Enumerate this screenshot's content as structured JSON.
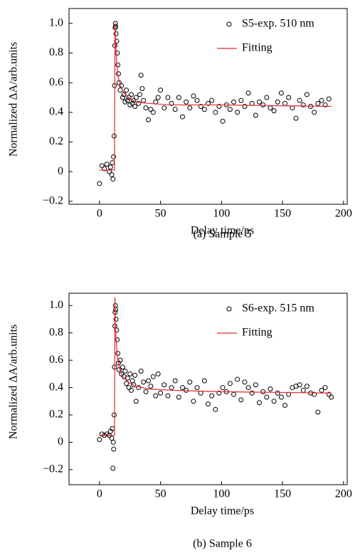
{
  "chart_data": [
    {
      "type": "scatter",
      "caption": "(a) Sample 5",
      "xlabel": "Delay time/ps",
      "ylabel": "Normalized ΔA/arb.units",
      "xlim": [
        -25,
        203
      ],
      "ylim": [
        -0.22,
        1.1
      ],
      "xticks": [
        0,
        50,
        100,
        150,
        200
      ],
      "yticks": [
        {
          "value": -0.2,
          "label": "−0.2"
        },
        0,
        0.2,
        0.4,
        0.6,
        0.8,
        {
          "value": 1,
          "label": "1.0"
        }
      ],
      "legend": "upper right",
      "series": [
        {
          "name": "S5-exp. 510 nm",
          "kind": "markers",
          "color": "#000000",
          "x": [
            0,
            2,
            4,
            6,
            8,
            9,
            10,
            10.5,
            11,
            11.5,
            12,
            12.3,
            12.6,
            12.8,
            13,
            13.2,
            13.5,
            14,
            14.5,
            15,
            15.5,
            16,
            17,
            18,
            19,
            20,
            21,
            22,
            23,
            24,
            25,
            26,
            27,
            28,
            29,
            30,
            32,
            33,
            34,
            35,
            36,
            38,
            40,
            42,
            44,
            46,
            48,
            50,
            53,
            56,
            59,
            62,
            65,
            68,
            71,
            74,
            77,
            80,
            83,
            86,
            89,
            92,
            95,
            98,
            101,
            104,
            107,
            110,
            113,
            116,
            119,
            122,
            125,
            128,
            131,
            134,
            137,
            140,
            143,
            146,
            149,
            152,
            155,
            158,
            161,
            164,
            167,
            170,
            173,
            176,
            179,
            182,
            185,
            188
          ],
          "values": [
            -0.08,
            0.04,
            0.02,
            0.05,
            0.0,
            0.03,
            -0.02,
            0.06,
            -0.05,
            0.1,
            0.24,
            0.58,
            0.85,
            0.97,
            1.0,
            0.98,
            0.93,
            0.88,
            0.8,
            0.72,
            0.66,
            0.6,
            0.55,
            0.58,
            0.5,
            0.52,
            0.47,
            0.55,
            0.48,
            0.5,
            0.45,
            0.52,
            0.46,
            0.48,
            0.44,
            0.5,
            0.46,
            0.52,
            0.65,
            0.56,
            0.48,
            0.43,
            0.35,
            0.42,
            0.4,
            0.47,
            0.5,
            0.55,
            0.43,
            0.5,
            0.46,
            0.42,
            0.5,
            0.37,
            0.47,
            0.43,
            0.51,
            0.48,
            0.44,
            0.42,
            0.46,
            0.48,
            0.4,
            0.44,
            0.34,
            0.45,
            0.42,
            0.47,
            0.4,
            0.48,
            0.44,
            0.53,
            0.46,
            0.38,
            0.47,
            0.45,
            0.5,
            0.43,
            0.41,
            0.47,
            0.53,
            0.46,
            0.5,
            0.43,
            0.36,
            0.48,
            0.45,
            0.52,
            0.44,
            0.4,
            0.46,
            0.48,
            0.45,
            0.49
          ]
        },
        {
          "name": "Fitting",
          "kind": "line",
          "color": "#e8282c",
          "x": [
            0,
            12.3,
            12.7,
            13,
            14,
            15,
            17,
            20,
            25,
            30,
            40,
            60,
            100,
            190
          ],
          "values": [
            0.01,
            0.01,
            1.0,
            0.9,
            0.75,
            0.65,
            0.58,
            0.53,
            0.49,
            0.47,
            0.46,
            0.45,
            0.45,
            0.44
          ]
        }
      ]
    },
    {
      "type": "scatter",
      "caption": "(b) Sample 6",
      "xlabel": "Delay time/ps",
      "ylabel": "Normalized ΔA/arb.units",
      "xlim": [
        -25,
        203
      ],
      "ylim": [
        -0.31,
        1.09
      ],
      "xticks": [
        0,
        50,
        100,
        150,
        200
      ],
      "yticks": [
        {
          "value": -0.2,
          "label": "−0.2"
        },
        0,
        0.2,
        0.4,
        0.6,
        0.8,
        {
          "value": 1,
          "label": "1.0"
        }
      ],
      "legend": "upper right",
      "series": [
        {
          "name": "S6-exp. 515 nm",
          "kind": "markers",
          "color": "#000000",
          "x": [
            0,
            2,
            4,
            6,
            8,
            9,
            10,
            10.5,
            11,
            11.3,
            11.6,
            12,
            12.3,
            12.6,
            12.8,
            13,
            13.2,
            13.5,
            14,
            14.5,
            15,
            15.5,
            16,
            17,
            18,
            19,
            20,
            21,
            22,
            23,
            24,
            25,
            26,
            27,
            28,
            29,
            30,
            32,
            34,
            36,
            38,
            40,
            42,
            44,
            46,
            48,
            50,
            53,
            56,
            59,
            62,
            65,
            68,
            71,
            74,
            77,
            80,
            83,
            86,
            89,
            92,
            95,
            98,
            101,
            104,
            107,
            110,
            113,
            116,
            119,
            122,
            125,
            128,
            131,
            134,
            137,
            140,
            143,
            146,
            149,
            152,
            155,
            158,
            161,
            164,
            167,
            170,
            173,
            176,
            179,
            182,
            185,
            188,
            190
          ],
          "values": [
            0.02,
            0.06,
            0.05,
            0.06,
            0.05,
            0.08,
            0.03,
            0.1,
            -0.19,
            0.0,
            -0.05,
            0.2,
            0.55,
            0.85,
            0.95,
            1.0,
            0.97,
            0.9,
            0.82,
            0.75,
            0.65,
            0.58,
            0.53,
            0.6,
            0.5,
            0.55,
            0.48,
            0.52,
            0.43,
            0.47,
            0.4,
            0.5,
            0.38,
            0.45,
            0.42,
            0.49,
            0.3,
            0.4,
            0.52,
            0.44,
            0.37,
            0.45,
            0.41,
            0.48,
            0.34,
            0.5,
            0.36,
            0.42,
            0.34,
            0.4,
            0.45,
            0.33,
            0.4,
            0.38,
            0.44,
            0.3,
            0.4,
            0.36,
            0.45,
            0.28,
            0.34,
            0.24,
            0.36,
            0.4,
            0.37,
            0.43,
            0.35,
            0.46,
            0.31,
            0.44,
            0.4,
            0.36,
            0.42,
            0.29,
            0.37,
            0.33,
            0.39,
            0.3,
            0.36,
            0.33,
            0.27,
            0.35,
            0.4,
            0.41,
            0.42,
            0.38,
            0.41,
            0.36,
            0.35,
            0.22,
            0.38,
            0.4,
            0.35,
            0.33
          ]
        },
        {
          "name": "Fitting",
          "kind": "line",
          "color": "#e8282c",
          "x": [
            0,
            12.3,
            12.7,
            13,
            14,
            15,
            17,
            20,
            25,
            30,
            40,
            60,
            100,
            190
          ],
          "values": [
            0.05,
            0.05,
            1.06,
            0.85,
            0.7,
            0.6,
            0.52,
            0.47,
            0.43,
            0.41,
            0.39,
            0.38,
            0.37,
            0.36
          ]
        }
      ]
    }
  ]
}
